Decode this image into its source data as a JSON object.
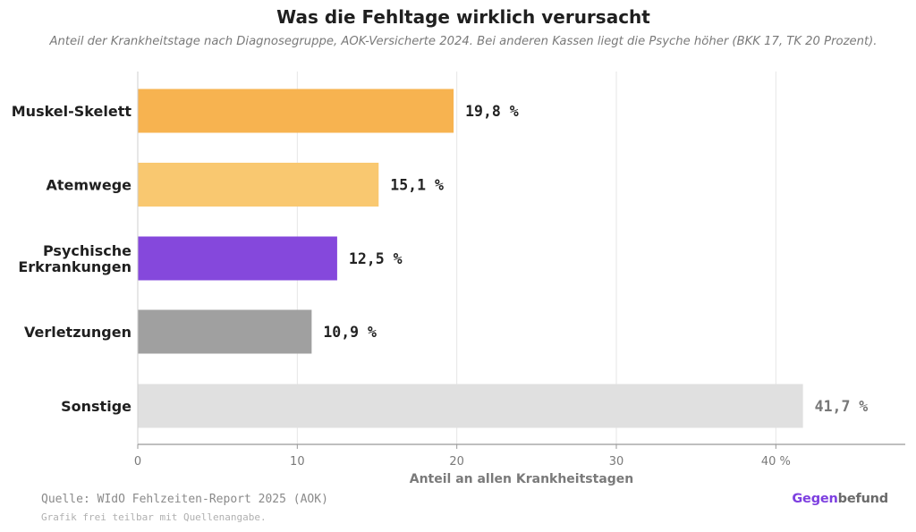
{
  "header": {
    "title": "Was die Fehltage wirklich verursacht",
    "subtitle": "Anteil der Krankheitstage nach Diagnosegruppe, AOK-Versicherte 2024. Bei anderen Kassen liegt die Psyche höher (BKK 17, TK 20 Prozent)."
  },
  "footer": {
    "source": "Quelle: WIdO Fehlzeiten-Report 2025 (AOK)",
    "note": "Grafik frei teilbar mit Quellenangabe.",
    "brand_part1": "Gegen",
    "brand_part2": "befund"
  },
  "chart_data": {
    "type": "bar",
    "orientation": "horizontal",
    "categories": [
      "Muskel-Skelett",
      "Atemwege",
      "Psychische Erkrankungen",
      "Verletzungen",
      "Sonstige"
    ],
    "category_lines": [
      [
        "Muskel-Skelett"
      ],
      [
        "Atemwege"
      ],
      [
        "Psychische",
        "Erkrankungen"
      ],
      [
        "Verletzungen"
      ],
      [
        "Sonstige"
      ]
    ],
    "values": [
      19.8,
      15.1,
      12.5,
      10.9,
      41.7
    ],
    "value_labels": [
      "19,8 %",
      "15,1 %",
      "12,5 %",
      "10,9 %",
      "41,7 %"
    ],
    "colors": [
      "#f7b350",
      "#f9c870",
      "#8548dc",
      "#a0a0a0",
      "#e0e0e0"
    ],
    "value_label_colors": [
      "#222222",
      "#222222",
      "#222222",
      "#222222",
      "#777777"
    ],
    "xlabel": "Anteil an allen Krankheitstagen",
    "xticks": [
      0,
      10,
      20,
      30,
      40
    ],
    "xtick_labels": [
      "0",
      "10",
      "20",
      "30",
      "40 %"
    ],
    "xlim": [
      0,
      48
    ],
    "grid": "vertical"
  }
}
